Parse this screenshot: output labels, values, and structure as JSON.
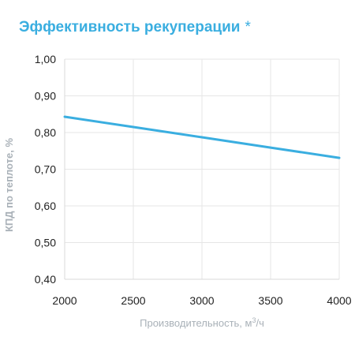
{
  "title": "Эффективность рекуперации",
  "title_mark": "*",
  "chart_data": {
    "type": "line",
    "x": [
      2000,
      2500,
      3000,
      3500,
      4000
    ],
    "series": [
      {
        "values": [
          0.843,
          0.815,
          0.787,
          0.759,
          0.731
        ],
        "color": "#3aaee0"
      }
    ],
    "xlabel": "Производительность, м³/ч",
    "ylabel": "КПД по теплоте, %",
    "xlim": [
      2000,
      4000
    ],
    "ylim": [
      0.4,
      1.0
    ],
    "x_ticks": [
      "2000",
      "2500",
      "3000",
      "3500",
      "4000"
    ],
    "y_ticks": [
      "0,40",
      "0,50",
      "0,60",
      "0,70",
      "0,80",
      "0,90",
      "1,00"
    ],
    "grid": true,
    "colors": {
      "title": "#3aaee0",
      "line": "#3aaee0",
      "grid": "#e6e6e6",
      "axis_label": "#a9b1b8"
    }
  }
}
